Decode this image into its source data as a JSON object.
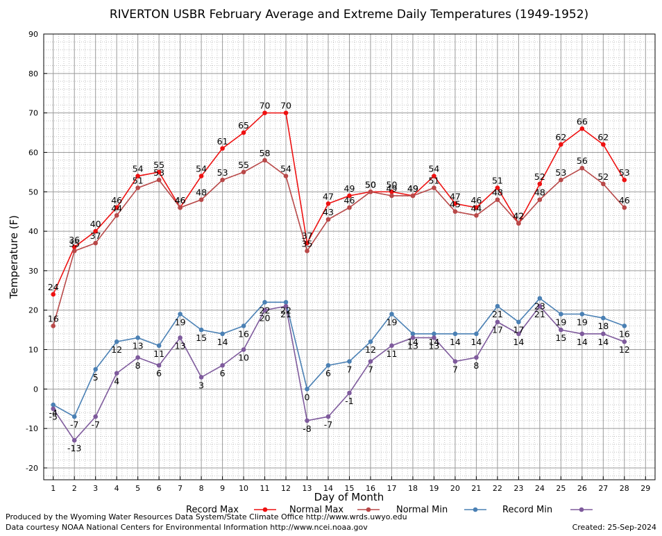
{
  "chart_data": {
    "type": "line",
    "title": "RIVERTON USBR February Average and Extreme Daily Temperatures (1949-1952)",
    "xlabel": "Day of Month",
    "ylabel": "Temperature (F)",
    "x": [
      1,
      2,
      3,
      4,
      5,
      6,
      7,
      8,
      9,
      10,
      11,
      12,
      13,
      14,
      15,
      16,
      17,
      18,
      19,
      20,
      21,
      22,
      23,
      24,
      25,
      26,
      27,
      28
    ],
    "xticks": [
      "1",
      "2",
      "3",
      "4",
      "5",
      "6",
      "7",
      "8",
      "9",
      "10",
      "11",
      "12",
      "13",
      "14",
      "15",
      "16",
      "17",
      "18",
      "19",
      "20",
      "21",
      "22",
      "23",
      "24",
      "25",
      "26",
      "27",
      "28",
      "29"
    ],
    "xlim": [
      0.55,
      29.45
    ],
    "ylim": [
      -23,
      90
    ],
    "yticks": [
      -20,
      -10,
      0,
      10,
      20,
      30,
      40,
      50,
      60,
      70,
      80,
      90
    ],
    "grid": true,
    "legend_position": "bottom",
    "series": [
      {
        "name": "Record Max",
        "color": "#ee1111",
        "values": [
          24,
          36,
          40,
          46,
          54,
          55,
          46,
          54,
          61,
          65,
          70,
          70,
          37,
          47,
          49,
          50,
          50,
          49,
          54,
          47,
          46,
          51,
          42,
          52,
          62,
          66,
          62,
          53
        ]
      },
      {
        "name": "Normal Max",
        "color": "#b84848",
        "values": [
          16,
          35,
          37,
          44,
          51,
          53,
          46,
          48,
          53,
          55,
          58,
          54,
          35,
          43,
          46,
          50,
          49,
          49,
          51,
          45,
          44,
          48,
          42,
          48,
          53,
          56,
          52,
          46
        ]
      },
      {
        "name": "Normal Min",
        "color": "#4a80b4",
        "values": [
          -4,
          -7,
          5,
          12,
          13,
          11,
          19,
          15,
          14,
          16,
          22,
          22,
          0,
          6,
          7,
          12,
          19,
          14,
          14,
          14,
          14,
          21,
          17,
          23,
          19,
          19,
          18,
          16
        ]
      },
      {
        "name": "Record Min",
        "color": "#7e5a9c",
        "values": [
          -5,
          -13,
          -7,
          4,
          8,
          6,
          13,
          3,
          6,
          10,
          20,
          21,
          -8,
          -7,
          -1,
          7,
          11,
          13,
          13,
          7,
          8,
          17,
          14,
          21,
          15,
          14,
          14,
          12
        ]
      }
    ]
  },
  "footer": {
    "produced_by": "Produced by the Wyoming Water Resources Data System/State Climate Office http://www.wrds.uwyo.edu",
    "courtesy": "Data courtesy NOAA National Centers for Environmental Information http://www.ncei.noaa.gov",
    "created": "Created:  25-Sep-2024"
  }
}
